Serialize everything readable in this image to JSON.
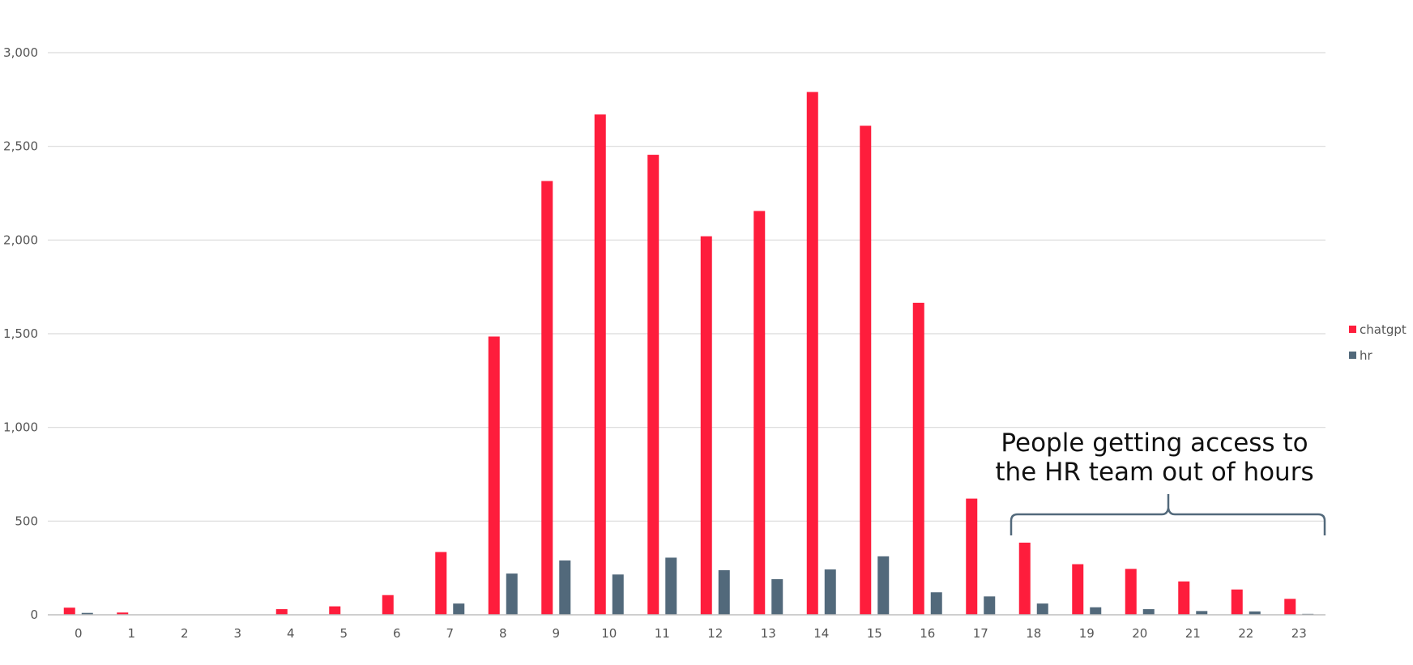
{
  "chart_data": {
    "type": "bar",
    "categories": [
      "0",
      "1",
      "2",
      "3",
      "4",
      "5",
      "6",
      "7",
      "8",
      "9",
      "10",
      "11",
      "12",
      "13",
      "14",
      "15",
      "16",
      "17",
      "18",
      "19",
      "20",
      "21",
      "22",
      "23"
    ],
    "series": [
      {
        "name": "chatgpt",
        "color": "#fe1d3c",
        "values": [
          38,
          12,
          0,
          0,
          30,
          45,
          105,
          335,
          1485,
          2315,
          2670,
          2455,
          2020,
          2155,
          2790,
          2610,
          1665,
          620,
          385,
          270,
          245,
          178,
          135,
          85
        ]
      },
      {
        "name": "hr",
        "color": "#52697b",
        "values": [
          10,
          0,
          0,
          0,
          0,
          0,
          0,
          60,
          220,
          290,
          215,
          305,
          238,
          190,
          242,
          312,
          120,
          98,
          60,
          40,
          30,
          20,
          18,
          5
        ]
      }
    ],
    "y_ticks": [
      "0",
      "500",
      "1,000",
      "1,500",
      "2,000",
      "2,500",
      "3,000"
    ],
    "ylim": [
      0,
      3000
    ],
    "grid": true,
    "legend_position": "right",
    "annotation": {
      "lines": [
        "People getting access to",
        "the HR team out of hours"
      ],
      "from_category": "18",
      "to_category": "23"
    }
  }
}
